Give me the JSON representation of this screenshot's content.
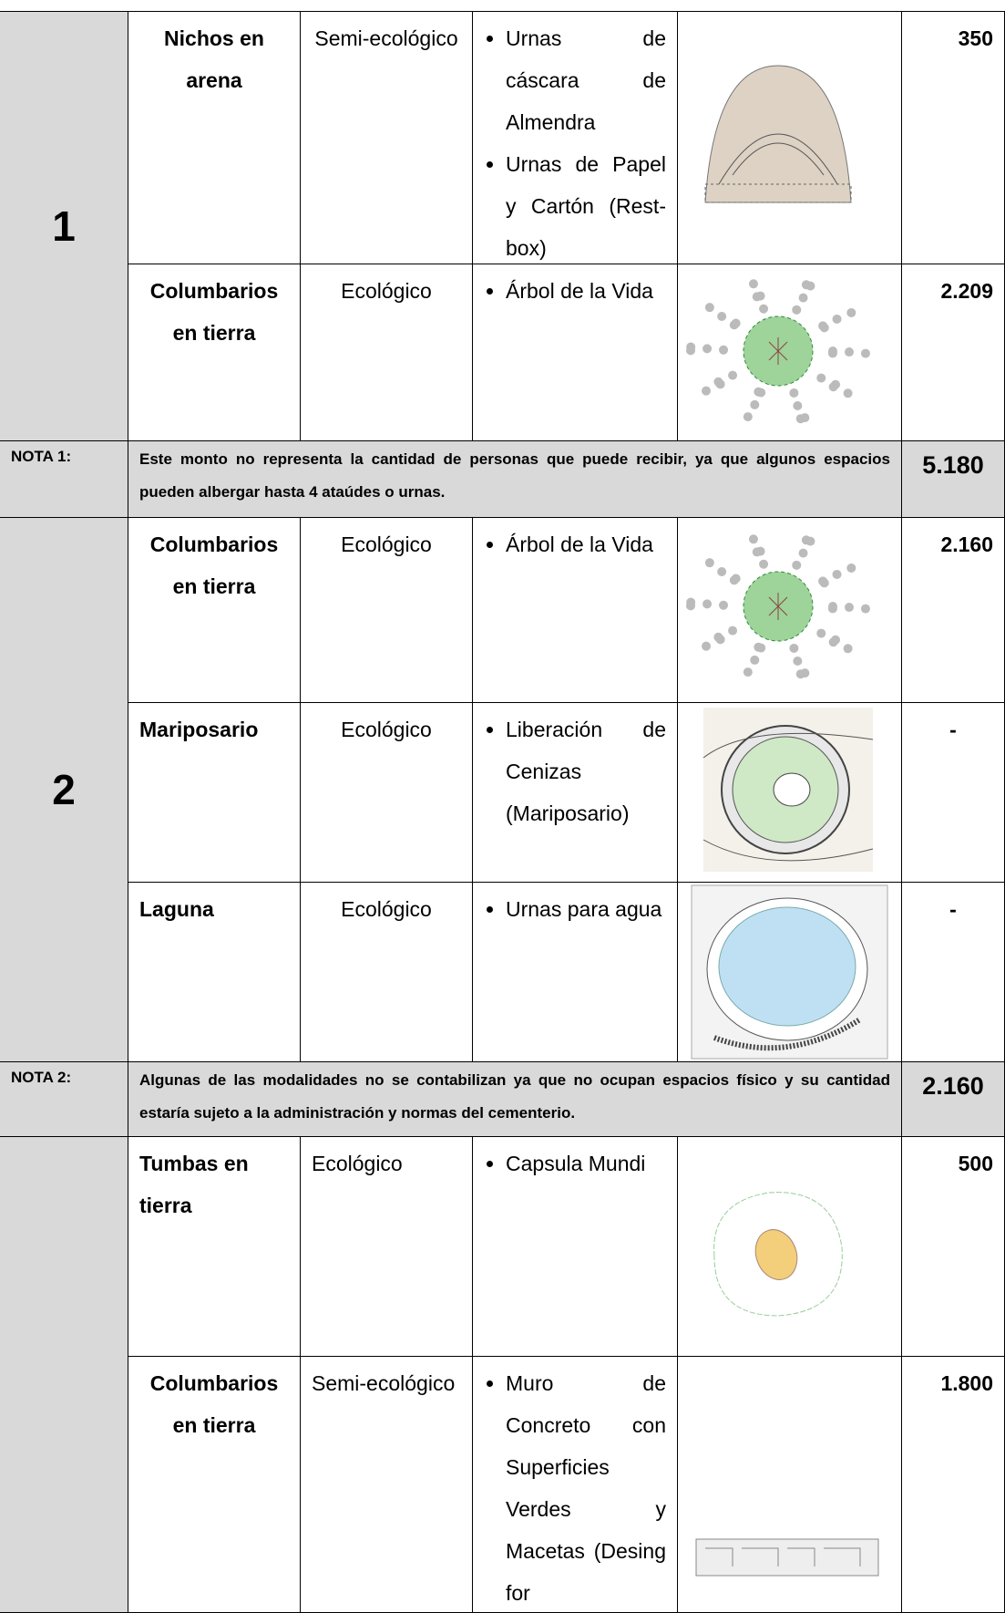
{
  "table": {
    "rows": [
      {
        "zone": "1",
        "name": "Nichos en arena",
        "type": "Semi-ecológico",
        "items": [
          "Urnas de cáscara de Almendra",
          "Urnas de Papel y Cartón (Rest-box)"
        ],
        "count": "350"
      },
      {
        "name": "Columbarios en tierra",
        "type": "Ecológico",
        "items": [
          "Árbol de la Vida"
        ],
        "count": "2.209"
      },
      {
        "note_label": "NOTA 1:",
        "note": "Este monto no representa la cantidad de personas que puede recibir, ya que algunos espacios pueden albergar hasta 4 ataúdes o urnas.",
        "count": "5.180"
      },
      {
        "zone": "2",
        "name": "Columbarios en tierra",
        "type": "Ecológico",
        "items": [
          "Árbol de la Vida"
        ],
        "count": "2.160"
      },
      {
        "name": "Mariposario",
        "type": "Ecológico",
        "items": [
          "Liberación de Cenizas (Mariposario)"
        ],
        "count": "-"
      },
      {
        "name": "Laguna",
        "type": "Ecológico",
        "items": [
          "Urnas para agua"
        ],
        "count": "-"
      },
      {
        "note_label": "NOTA 2:",
        "note": "Algunas de las modalidades no se contabilizan ya que no ocupan espacios físico y su cantidad estaría sujeto a la administración y normas del cementerio.",
        "count": "2.160"
      },
      {
        "name": "Tumbas en tierra",
        "type": "Ecológico",
        "items": [
          "Capsula Mundi"
        ],
        "count": "500"
      },
      {
        "name": "Columbarios en tierra",
        "type": "Semi-ecológico",
        "items": [
          "Muro de Concreto con Superficies Verdes y Macetas (Desing for"
        ],
        "count": "1.800"
      }
    ]
  }
}
